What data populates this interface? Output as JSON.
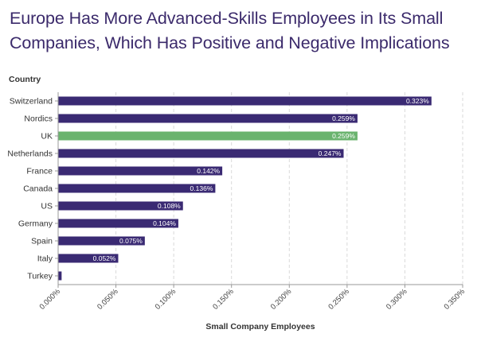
{
  "colors": {
    "bar": "#3a2a73",
    "highlight": "#6ab36e",
    "title": "#3b2a6b",
    "text": "#333333",
    "grid": "#d9d9d9"
  },
  "chart_data": {
    "type": "bar",
    "orientation": "horizontal",
    "title": "Europe Has More Advanced-Skills Employees in Its Small Companies, Which Has Positive and Negative Implications",
    "ylabel": "Country",
    "xlabel": "Small Company Employees",
    "categories": [
      "Switzerland",
      "Nordics",
      "UK",
      "Netherlands",
      "France",
      "Canada",
      "US",
      "Germany",
      "Spain",
      "Italy",
      "Turkey"
    ],
    "values": [
      0.323,
      0.259,
      0.259,
      0.247,
      0.142,
      0.136,
      0.108,
      0.104,
      0.075,
      0.052,
      0.003
    ],
    "data_labels": [
      "0.323%",
      "0.259%",
      "0.259%",
      "0.247%",
      "0.142%",
      "0.136%",
      "0.108%",
      "0.104%",
      "0.075%",
      "0.052%",
      ""
    ],
    "highlight_category": "UK",
    "xlim": [
      0,
      0.35
    ],
    "xticks": [
      0,
      0.05,
      0.1,
      0.15,
      0.2,
      0.25,
      0.3,
      0.35
    ],
    "xtick_labels": [
      "0.000%",
      "0.050%",
      "0.100%",
      "0.150%",
      "0.200%",
      "0.250%",
      "0.300%",
      "0.350%"
    ],
    "grid": "vertical-dashed",
    "legend": "none"
  }
}
